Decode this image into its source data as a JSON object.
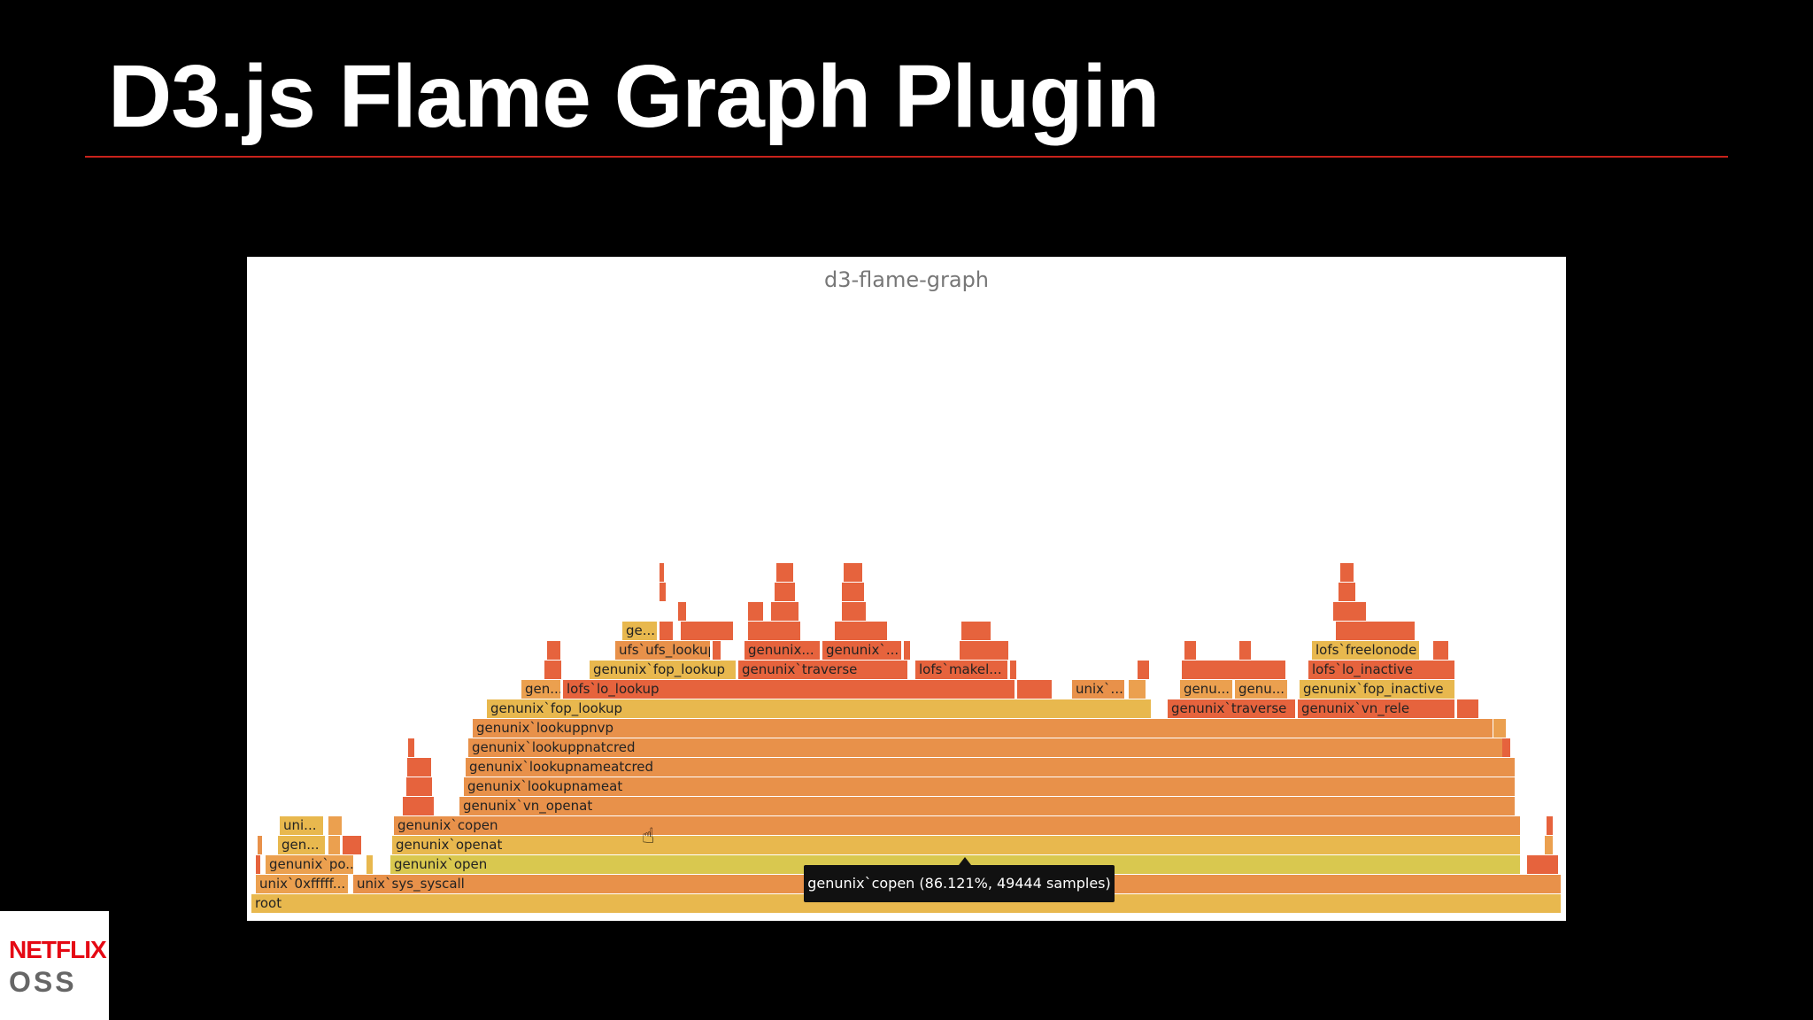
{
  "slide": {
    "title": "D3.js Flame Graph Plugin"
  },
  "flamegraph": {
    "title": "d3-flame-graph",
    "tooltip": "genunix`copen (86.121%, 49444 samples)",
    "colors": {
      "orange": "#e8914a",
      "orange_light": "#eba04f",
      "amber": "#e8b84e",
      "gold": "#d9c84f",
      "red": "#e6633d",
      "rust": "#e0793f"
    }
  },
  "logo": {
    "brand": "NETFLIX",
    "product": "OSS"
  }
}
